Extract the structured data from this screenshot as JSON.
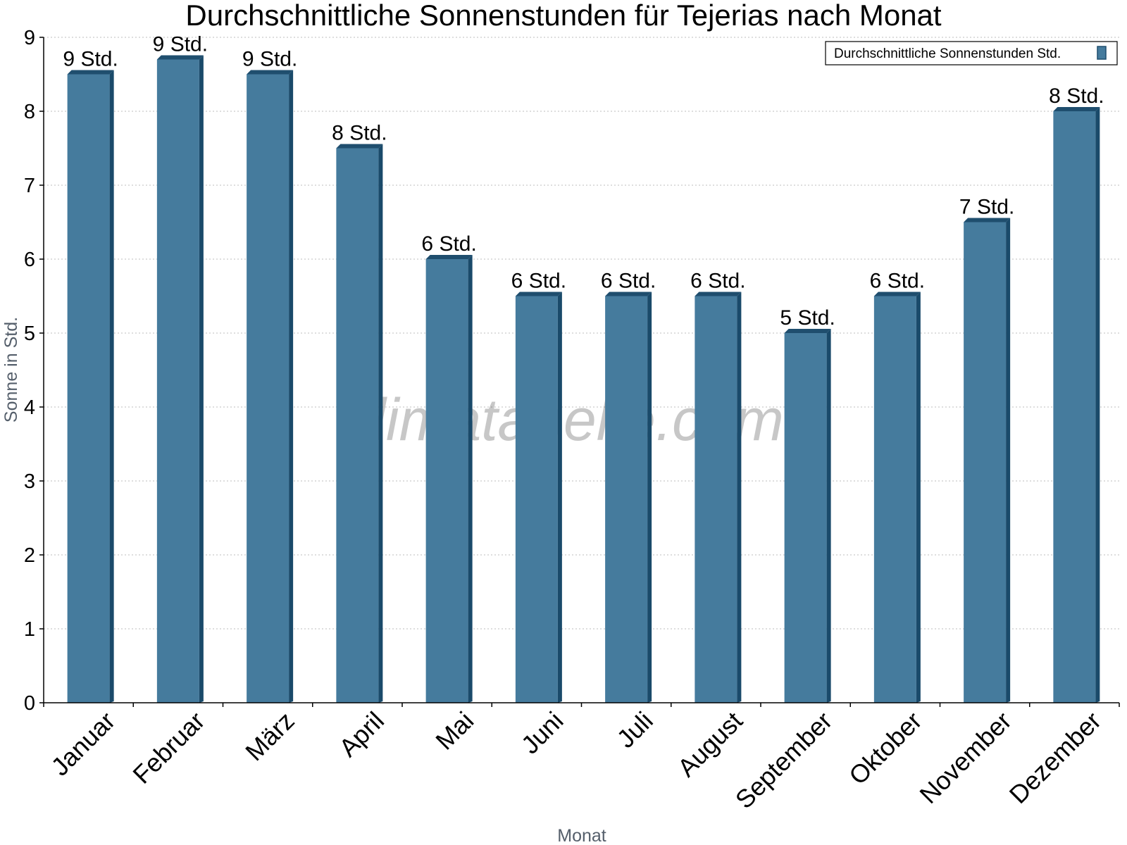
{
  "chart_data": {
    "type": "bar",
    "title": "Durchschnittliche Sonnenstunden für Tejerias nach Monat",
    "xlabel": "Monat",
    "ylabel": "Sonne in Std.",
    "ylim": [
      0,
      9
    ],
    "yticks": [
      "0",
      "1",
      "2",
      "3",
      "4",
      "5",
      "6",
      "7",
      "8",
      "9"
    ],
    "grid": true,
    "legend_position": "top-right",
    "categories": [
      "Januar",
      "Februar",
      "März",
      "April",
      "Mai",
      "Juni",
      "Juli",
      "August",
      "September",
      "Oktober",
      "November",
      "Dezember"
    ],
    "series": [
      {
        "name": "Durchschnittliche Sonnenstunden Std.",
        "color": "#457b9d",
        "values": [
          8.5,
          8.7,
          8.5,
          7.5,
          6.0,
          5.5,
          5.5,
          5.5,
          5.0,
          5.5,
          6.5,
          8.0
        ],
        "data_labels": [
          "9 Std.",
          "9 Std.",
          "9 Std.",
          "8 Std.",
          "6 Std.",
          "6 Std.",
          "6 Std.",
          "6 Std.",
          "5 Std.",
          "6 Std.",
          "7 Std.",
          "8 Std."
        ]
      }
    ],
    "watermark": "klimatabelle.com"
  }
}
